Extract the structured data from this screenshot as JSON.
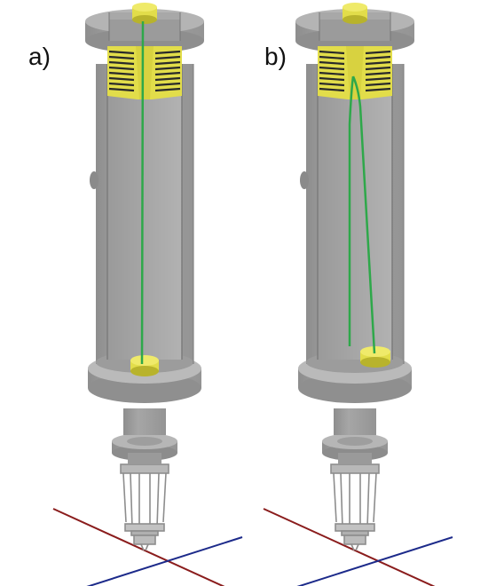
{
  "panels": [
    {
      "label": "a)"
    },
    {
      "label": "b)"
    }
  ],
  "colors": {
    "body": "#a2a2a2",
    "body_dark": "#858585",
    "body_light": "#bdbdbd",
    "top_light": "#b4b4b4",
    "spring": "#e2dd4a",
    "spring_dark": "#b8b32c",
    "fiber": "#2ea84a",
    "axis_red": "#8a1c1c",
    "axis_blue": "#1c2a8a"
  },
  "icons": [
    "fiber-cylinder-model-icon",
    "coordinate-axes-icon"
  ]
}
